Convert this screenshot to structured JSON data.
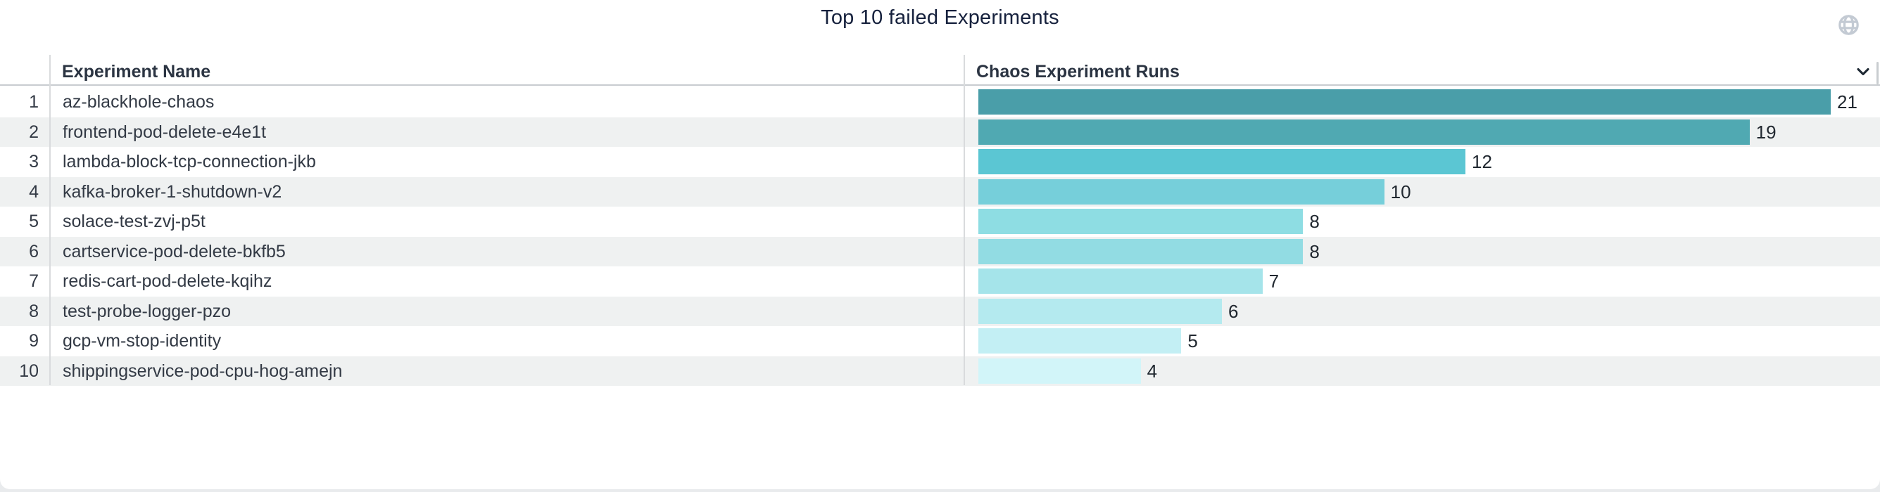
{
  "widget": {
    "title": "Top 10 failed Experiments",
    "icons": {
      "globe_icon_color": "#c3cad3",
      "chevron_icon_color": "#1e2833"
    }
  },
  "table": {
    "columns": [
      {
        "label": "Experiment Name"
      },
      {
        "label": "Chaos Experiment Runs"
      }
    ],
    "rows": [
      {
        "rank": "1",
        "name": "az-blackhole-chaos",
        "runs": 21,
        "bar_color": "#4a9ea9"
      },
      {
        "rank": "2",
        "name": "frontend-pod-delete-e4e1t",
        "runs": 19,
        "bar_color": "#50a9b2"
      },
      {
        "rank": "3",
        "name": "lambda-block-tcp-connection-jkb",
        "runs": 12,
        "bar_color": "#5bc6d3"
      },
      {
        "rank": "4",
        "name": "kafka-broker-1-shutdown-v2",
        "runs": 10,
        "bar_color": "#76cfda"
      },
      {
        "rank": "5",
        "name": "solace-test-zvj-p5t",
        "runs": 8,
        "bar_color": "#8edde3"
      },
      {
        "rank": "6",
        "name": "cartservice-pod-delete-bkfb5",
        "runs": 8,
        "bar_color": "#92dce3"
      },
      {
        "rank": "7",
        "name": "redis-cart-pod-delete-kqihz",
        "runs": 7,
        "bar_color": "#a5e4ea"
      },
      {
        "rank": "8",
        "name": "test-probe-logger-pzo",
        "runs": 6,
        "bar_color": "#b4eaef"
      },
      {
        "rank": "9",
        "name": "gcp-vm-stop-identity",
        "runs": 5,
        "bar_color": "#c3eff4"
      },
      {
        "rank": "10",
        "name": "shippingservice-pod-cpu-hog-amejn",
        "runs": 4,
        "bar_color": "#d2f5f9"
      }
    ],
    "row_alt_color": "#eff1f1"
  },
  "chart_data": {
    "type": "bar",
    "orientation": "horizontal",
    "title": "Top 10 failed Experiments",
    "categories": [
      "az-blackhole-chaos",
      "frontend-pod-delete-e4e1t",
      "lambda-block-tcp-connection-jkb",
      "kafka-broker-1-shutdown-v2",
      "solace-test-zvj-p5t",
      "cartservice-pod-delete-bkfb5",
      "redis-cart-pod-delete-kqihz",
      "test-probe-logger-pzo",
      "gcp-vm-stop-identity",
      "shippingservice-pod-cpu-hog-amejn"
    ],
    "values": [
      21,
      19,
      12,
      10,
      8,
      8,
      7,
      6,
      5,
      4
    ],
    "xlabel": "Chaos Experiment Runs",
    "ylabel": "Experiment Name",
    "xlim": [
      0,
      21
    ],
    "grid": false,
    "legend": false,
    "data_labels": true,
    "bar_colors": [
      "#4a9ea9",
      "#50a9b2",
      "#5bc6d3",
      "#76cfda",
      "#8edde3",
      "#92dce3",
      "#a5e4ea",
      "#b4eaef",
      "#c3eff4",
      "#d2f5f9"
    ]
  }
}
